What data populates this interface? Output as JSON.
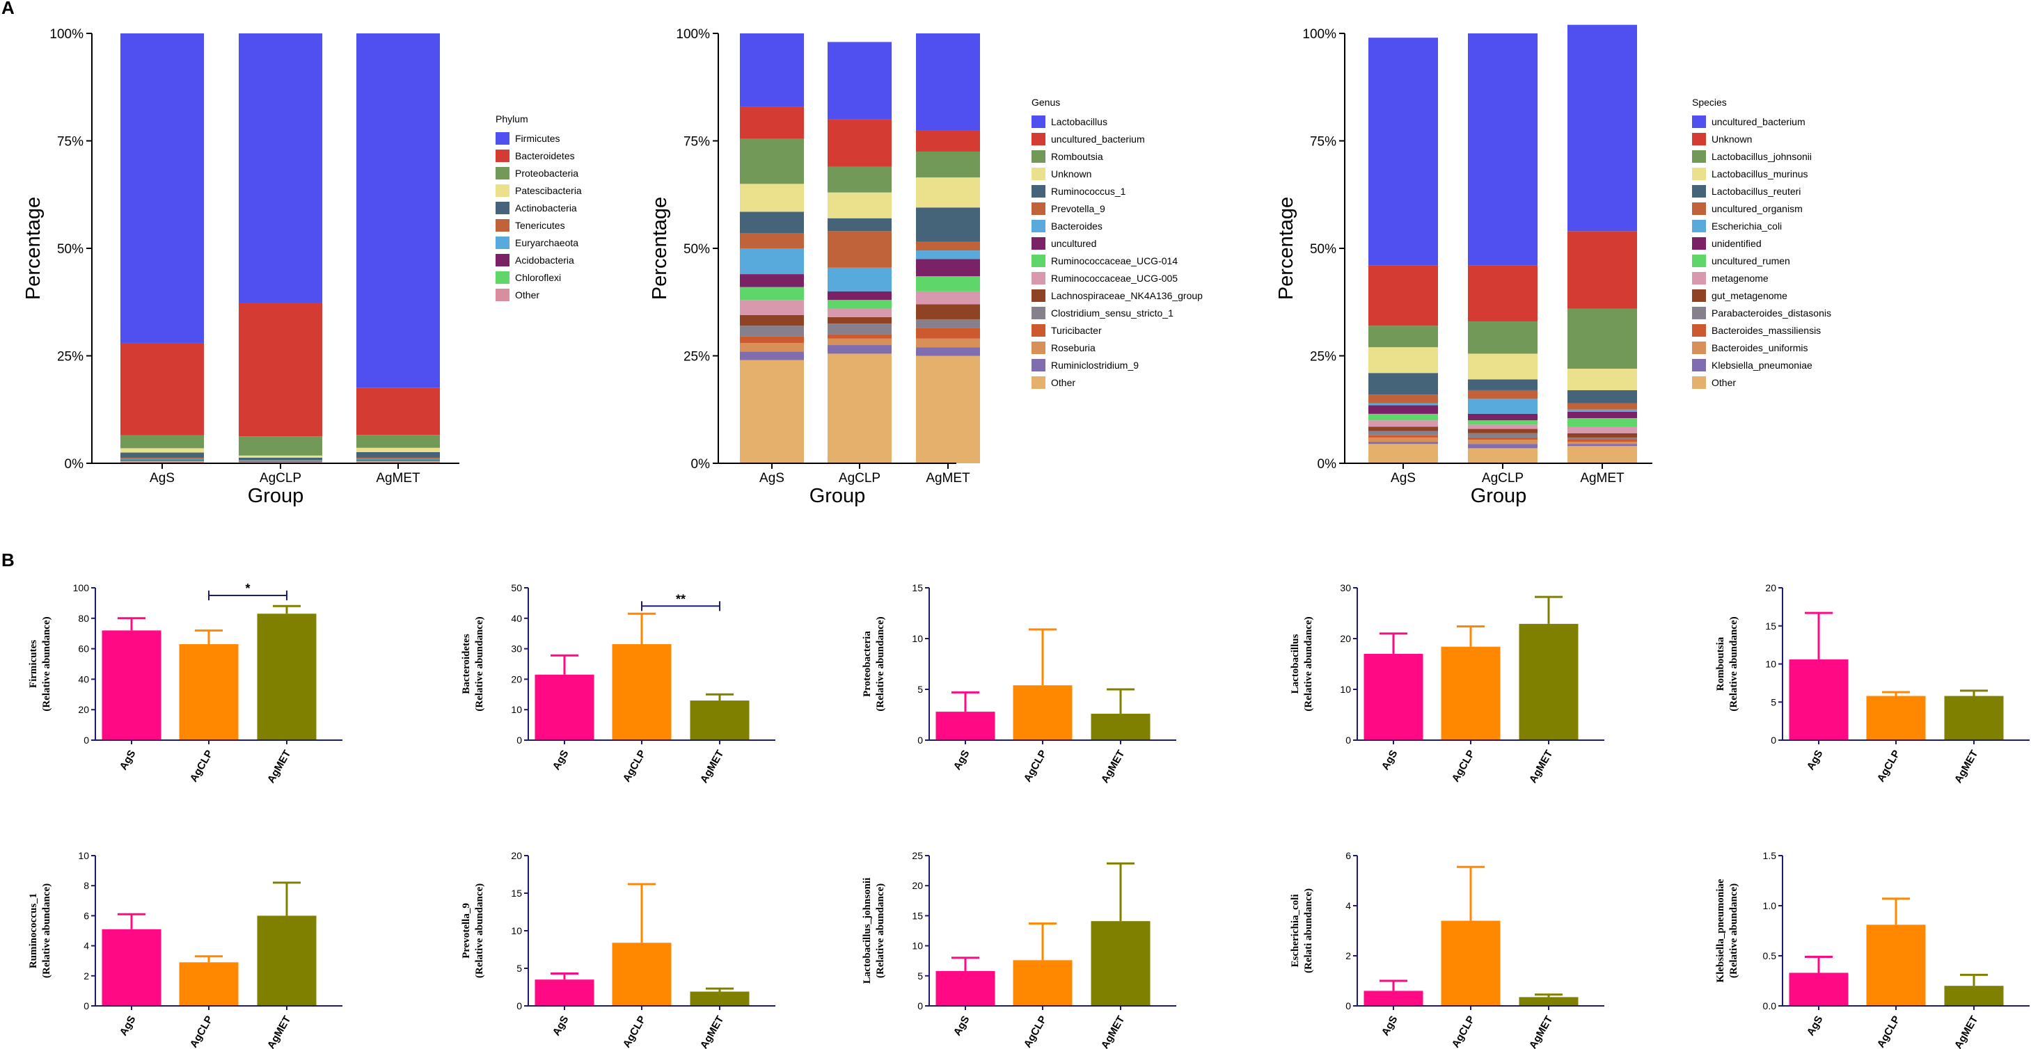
{
  "panels": {
    "a": "A",
    "b": "B"
  },
  "chart_data": [
    {
      "type": "bar",
      "stacked": true,
      "title": "",
      "xlabel": "Group",
      "ylabel": "Percentage",
      "ylim": [
        0,
        100
      ],
      "yticks": [
        "0%",
        "25%",
        "50%",
        "75%",
        "100%"
      ],
      "legend_title": "Phylum",
      "legend_position": "right",
      "categories": [
        "AgS",
        "AgCLP",
        "AgMET"
      ],
      "series": [
        {
          "name": "Other",
          "color": "#D88E9E",
          "values": [
            0.5,
            0.3,
            0.5
          ]
        },
        {
          "name": "Chloroflexi",
          "color": "#5FD66A",
          "values": [
            0.1,
            0.1,
            0.1
          ]
        },
        {
          "name": "Acidobacteria",
          "color": "#7B2266",
          "values": [
            0.2,
            0.1,
            0.2
          ]
        },
        {
          "name": "Euryarchaeota",
          "color": "#58A9DC",
          "values": [
            0.2,
            0.1,
            0.2
          ]
        },
        {
          "name": "Tenericutes",
          "color": "#C0623A",
          "values": [
            0.3,
            0.2,
            0.3
          ]
        },
        {
          "name": "Actinobacteria",
          "color": "#45647A",
          "values": [
            1.2,
            0.5,
            1.3
          ]
        },
        {
          "name": "Patescibacteria",
          "color": "#EBE08C",
          "values": [
            1.0,
            0.5,
            1.0
          ]
        },
        {
          "name": "Proteobacteria",
          "color": "#739959",
          "values": [
            3.0,
            4.5,
            3.0
          ]
        },
        {
          "name": "Bacteroidetes",
          "color": "#D43C33",
          "values": [
            21.5,
            31.0,
            11.0
          ]
        },
        {
          "name": "Firmicutes",
          "color": "#5050F0",
          "values": [
            72.0,
            62.7,
            82.4
          ]
        }
      ]
    },
    {
      "type": "bar",
      "stacked": true,
      "title": "",
      "xlabel": "Group",
      "ylabel": "Percentage",
      "ylim": [
        0,
        100
      ],
      "yticks": [
        "0%",
        "25%",
        "50%",
        "75%",
        "100%"
      ],
      "legend_title": "Genus",
      "legend_position": "right",
      "categories": [
        "AgS",
        "AgCLP",
        "AgMET"
      ],
      "series": [
        {
          "name": "Other",
          "color": "#E4B06C",
          "values": [
            24.0,
            25.5,
            25.0
          ]
        },
        {
          "name": "Ruminiclostridium_9",
          "color": "#7F6DAF",
          "values": [
            2.0,
            2.0,
            2.0
          ]
        },
        {
          "name": "Roseburia",
          "color": "#D99058",
          "values": [
            2.0,
            1.5,
            2.0
          ]
        },
        {
          "name": "Turicibacter",
          "color": "#CC5A2E",
          "values": [
            1.5,
            1.0,
            2.5
          ]
        },
        {
          "name": "Clostridium_sensu_stricto_1",
          "color": "#85808C",
          "values": [
            2.5,
            2.5,
            2.0
          ]
        },
        {
          "name": "Lachnospiraceae_NK4A136_group",
          "color": "#8F4224",
          "values": [
            2.5,
            1.5,
            3.5
          ]
        },
        {
          "name": "Ruminococcaceae_UCG-005",
          "color": "#D899AE",
          "values": [
            3.5,
            2.0,
            3.0
          ]
        },
        {
          "name": "Ruminococcaceae_UCG-014",
          "color": "#5FD66A",
          "values": [
            3.0,
            2.0,
            3.5
          ]
        },
        {
          "name": "uncultured",
          "color": "#7B2266",
          "values": [
            3.0,
            2.0,
            4.0
          ]
        },
        {
          "name": "Bacteroides",
          "color": "#58A9DC",
          "values": [
            6.0,
            5.5,
            2.0
          ]
        },
        {
          "name": "Prevotella_9",
          "color": "#C0623A",
          "values": [
            3.5,
            8.5,
            2.0
          ]
        },
        {
          "name": "Ruminococcus_1",
          "color": "#45647A",
          "values": [
            5.0,
            3.0,
            8.0
          ]
        },
        {
          "name": "Unknown",
          "color": "#EBE08C",
          "values": [
            6.5,
            6.0,
            7.0
          ]
        },
        {
          "name": "Romboutsia",
          "color": "#739959",
          "values": [
            10.5,
            6.0,
            6.0
          ]
        },
        {
          "name": "uncultured_bacterium",
          "color": "#D43C33",
          "values": [
            7.5,
            11.0,
            5.0
          ]
        },
        {
          "name": "Lactobacillus",
          "color": "#5050F0",
          "values": [
            17.0,
            18.0,
            22.5
          ]
        }
      ]
    },
    {
      "type": "bar",
      "stacked": true,
      "title": "",
      "xlabel": "Group",
      "ylabel": "Percentage",
      "ylim": [
        0,
        100
      ],
      "yticks": [
        "0%",
        "25%",
        "50%",
        "75%",
        "100%"
      ],
      "legend_title": "Species",
      "legend_position": "right",
      "categories": [
        "AgS",
        "AgCLP",
        "AgMET"
      ],
      "series": [
        {
          "name": "Other",
          "color": "#E4B06C",
          "values": [
            4.5,
            3.5,
            4.0
          ]
        },
        {
          "name": "Klebsiella_pneumoniae",
          "color": "#7F6DAF",
          "values": [
            0.5,
            1.0,
            0.5
          ]
        },
        {
          "name": "Bacteroides_uniformis",
          "color": "#D99058",
          "values": [
            1.0,
            1.0,
            0.5
          ]
        },
        {
          "name": "Bacteroides_massiliensis",
          "color": "#CC5A2E",
          "values": [
            0.5,
            0.5,
            0.5
          ]
        },
        {
          "name": "Parabacteroides_distasonis",
          "color": "#85808C",
          "values": [
            1.0,
            1.0,
            0.5
          ]
        },
        {
          "name": "gut_metagenome",
          "color": "#8F4224",
          "values": [
            1.0,
            1.0,
            1.0
          ]
        },
        {
          "name": "metagenome",
          "color": "#D899AE",
          "values": [
            1.5,
            1.0,
            1.5
          ]
        },
        {
          "name": "uncultured_rumen",
          "color": "#5FD66A",
          "values": [
            1.5,
            1.0,
            2.0
          ]
        },
        {
          "name": "unidentified",
          "color": "#7B2266",
          "values": [
            2.0,
            1.5,
            1.5
          ]
        },
        {
          "name": "Escherichia_coli",
          "color": "#58A9DC",
          "values": [
            0.5,
            3.5,
            0.5
          ]
        },
        {
          "name": "uncultured_organism",
          "color": "#C0623A",
          "values": [
            2.0,
            2.0,
            1.5
          ]
        },
        {
          "name": "Lactobacillus_reuteri",
          "color": "#45647A",
          "values": [
            5.0,
            2.5,
            3.0
          ]
        },
        {
          "name": "Lactobacillus_murinus",
          "color": "#EBE08C",
          "values": [
            6.0,
            6.0,
            5.0
          ]
        },
        {
          "name": "Lactobacillus_johnsonii",
          "color": "#739959",
          "values": [
            5.0,
            7.5,
            14.0
          ]
        },
        {
          "name": "Unknown",
          "color": "#D43C33",
          "values": [
            14.0,
            13.0,
            18.0
          ]
        },
        {
          "name": "uncultured_bacterium",
          "color": "#5050F0",
          "values": [
            53.0,
            54.0,
            48.0
          ]
        }
      ]
    },
    {
      "type": "bar",
      "ylabel_name": "Firmicutes",
      "ylabel_sub": "(Relative abundance)",
      "categories": [
        "AgS",
        "AgCLP",
        "AgMET"
      ],
      "values": [
        72,
        63,
        83
      ],
      "errors": [
        8,
        9,
        5
      ],
      "colors": [
        "#FF0A84",
        "#FF8800",
        "#808000"
      ],
      "ylim": [
        0,
        100
      ],
      "yticks": [
        0,
        20,
        40,
        60,
        80,
        100
      ],
      "yticklabels": [
        "0",
        "20",
        "40",
        "60",
        "80",
        "100"
      ],
      "significance": {
        "from": 1,
        "to": 2,
        "label": "*",
        "value": 95
      }
    },
    {
      "type": "bar",
      "ylabel_name": "Bacteroidetes",
      "ylabel_sub": "(Relative abundance)",
      "categories": [
        "AgS",
        "AgCLP",
        "AgMET"
      ],
      "values": [
        21.5,
        31.5,
        13
      ],
      "errors": [
        6.3,
        10,
        2
      ],
      "colors": [
        "#FF0A84",
        "#FF8800",
        "#808000"
      ],
      "ylim": [
        0,
        50
      ],
      "yticks": [
        0,
        10,
        20,
        30,
        40,
        50
      ],
      "yticklabels": [
        "0",
        "10",
        "20",
        "30",
        "40",
        "50"
      ],
      "significance": {
        "from": 1,
        "to": 2,
        "label": "**",
        "value": 44
      }
    },
    {
      "type": "bar",
      "ylabel_name": "Proteobacteria",
      "ylabel_sub": "(Relative abundance)",
      "categories": [
        "AgS",
        "AgCLP",
        "AgMET"
      ],
      "values": [
        2.8,
        5.4,
        2.6
      ],
      "errors": [
        1.9,
        5.5,
        2.4
      ],
      "colors": [
        "#FF0A84",
        "#FF8800",
        "#808000"
      ],
      "ylim": [
        0,
        15
      ],
      "yticks": [
        0,
        5,
        10,
        15
      ],
      "yticklabels": [
        "0",
        "5",
        "10",
        "15"
      ]
    },
    {
      "type": "bar",
      "ylabel_name": "Lactobacillus",
      "ylabel_sub": "(Relative abundance)",
      "categories": [
        "AgS",
        "AgCLP",
        "AgMET"
      ],
      "values": [
        17,
        18.4,
        22.9
      ],
      "errors": [
        4,
        4,
        5.3
      ],
      "colors": [
        "#FF0A84",
        "#FF8800",
        "#808000"
      ],
      "ylim": [
        0,
        30
      ],
      "yticks": [
        0,
        10,
        20,
        30
      ],
      "yticklabels": [
        "0",
        "10",
        "20",
        "30"
      ]
    },
    {
      "type": "bar",
      "ylabel_name": "Romboutsia",
      "ylabel_sub": "(Relative abundance)",
      "categories": [
        "AgS",
        "AgCLP",
        "AgMET"
      ],
      "values": [
        10.6,
        5.8,
        5.8
      ],
      "errors": [
        6.1,
        0.5,
        0.7
      ],
      "colors": [
        "#FF0A84",
        "#FF8800",
        "#808000"
      ],
      "ylim": [
        0,
        20
      ],
      "yticks": [
        0,
        5,
        10,
        15,
        20
      ],
      "yticklabels": [
        "0",
        "5",
        "10",
        "15",
        "20"
      ]
    },
    {
      "type": "bar",
      "ylabel_name": "Ruminococcus_1",
      "ylabel_sub": "(Relative abundance)",
      "categories": [
        "AgS",
        "AgCLP",
        "AgMET"
      ],
      "values": [
        5.1,
        2.9,
        6
      ],
      "errors": [
        1,
        0.4,
        2.2
      ],
      "colors": [
        "#FF0A84",
        "#FF8800",
        "#808000"
      ],
      "ylim": [
        0,
        10
      ],
      "yticks": [
        0,
        2,
        4,
        6,
        8,
        10
      ],
      "yticklabels": [
        "0",
        "2",
        "4",
        "6",
        "8",
        "10"
      ]
    },
    {
      "type": "bar",
      "ylabel_name": "Prevotella_9",
      "ylabel_sub": "(Relative abundance)",
      "categories": [
        "AgS",
        "AgCLP",
        "AgMET"
      ],
      "values": [
        3.5,
        8.4,
        1.9
      ],
      "errors": [
        0.8,
        7.8,
        0.4
      ],
      "colors": [
        "#FF0A84",
        "#FF8800",
        "#808000"
      ],
      "ylim": [
        0,
        20
      ],
      "yticks": [
        0,
        5,
        10,
        15,
        20
      ],
      "yticklabels": [
        "0",
        "5",
        "10",
        "15",
        "20"
      ]
    },
    {
      "type": "bar",
      "ylabel_name": "Lactobacillus_johnsonii",
      "ylabel_sub": "(Relative abundance)",
      "categories": [
        "AgS",
        "AgCLP",
        "AgMET"
      ],
      "values": [
        5.8,
        7.6,
        14.1
      ],
      "errors": [
        2.2,
        6.1,
        9.6
      ],
      "colors": [
        "#FF0A84",
        "#FF8800",
        "#808000"
      ],
      "ylim": [
        0,
        25
      ],
      "yticks": [
        0,
        5,
        10,
        15,
        20,
        25
      ],
      "yticklabels": [
        "0",
        "5",
        "10",
        "15",
        "20",
        "25"
      ]
    },
    {
      "type": "bar",
      "ylabel_name": "Escherichia_coli",
      "ylabel_sub": "(Relati abundance)",
      "categories": [
        "AgS",
        "AgCLP",
        "AgMET"
      ],
      "values": [
        0.6,
        3.4,
        0.35
      ],
      "errors": [
        0.4,
        2.15,
        0.1
      ],
      "colors": [
        "#FF0A84",
        "#FF8800",
        "#808000"
      ],
      "ylim": [
        0,
        6
      ],
      "yticks": [
        0,
        2,
        4,
        6
      ],
      "yticklabels": [
        "0",
        "2",
        "4",
        "6"
      ]
    },
    {
      "type": "bar",
      "ylabel_name": "Klebsiella_pneumoniae",
      "ylabel_sub": "(Relative abundance)",
      "categories": [
        "AgS",
        "AgCLP",
        "AgMET"
      ],
      "values": [
        0.33,
        0.81,
        0.2
      ],
      "errors": [
        0.16,
        0.26,
        0.11
      ],
      "colors": [
        "#FF0A84",
        "#FF8800",
        "#808000"
      ],
      "ylim": [
        0,
        1.5
      ],
      "yticks": [
        0,
        0.5,
        1.0,
        1.5
      ],
      "yticklabels": [
        "0.0",
        "0.5",
        "1.0",
        "1.5"
      ]
    }
  ]
}
